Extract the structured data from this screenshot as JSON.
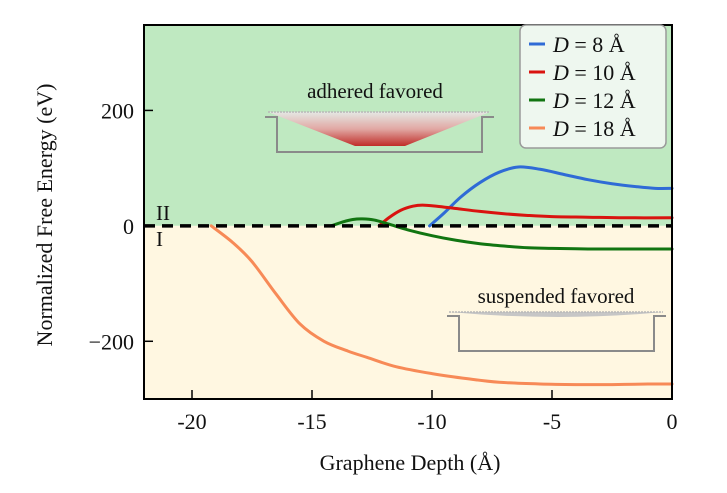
{
  "chart_data": {
    "type": "line",
    "title": "",
    "xlabel": "Graphene Depth (Å)",
    "ylabel": "Normalized Free Energy (eV)",
    "xlim": [
      -22,
      0
    ],
    "ylim": [
      -300,
      348
    ],
    "xticks": [
      -20,
      -15,
      -10,
      -5,
      0
    ],
    "xtick_labels": [
      "-20",
      "-15",
      "-10",
      "-5",
      "0"
    ],
    "yticks": [
      200,
      0,
      -200
    ],
    "ytick_labels": [
      "200",
      "0",
      "−200"
    ],
    "grid": false,
    "legend_position": "top-right",
    "regions": [
      {
        "name": "II",
        "label": "II",
        "range": [
          0,
          348
        ],
        "color": "#bfe9c1",
        "annotation": "adhered favored"
      },
      {
        "name": "I",
        "label": "I",
        "range": [
          -300,
          0
        ],
        "color": "#fff7e1",
        "annotation": "suspended favored"
      }
    ],
    "reference_line": {
      "y": 0,
      "style": "dashed",
      "color": "#000000"
    },
    "series": [
      {
        "name": "D = 8 Å",
        "var": "D",
        "value_label": "= 8 Å",
        "color": "#2f6bd6",
        "x": [
          -10.1,
          -9.5,
          -8.8,
          -8.0,
          -7.2,
          -6.4,
          -5.5,
          -4.5,
          -3.5,
          -2.5,
          -1.5,
          -0.7,
          0
        ],
        "y": [
          0,
          22,
          50,
          75,
          93,
          102,
          98,
          89,
          80,
          73,
          68,
          65,
          65
        ]
      },
      {
        "name": "D = 10 Å",
        "var": "D",
        "value_label": "= 10 Å",
        "color": "#d9130f",
        "x": [
          -12.2,
          -11.8,
          -11.3,
          -10.8,
          -10.4,
          -9.8,
          -9.0,
          -8.0,
          -7.0,
          -6.0,
          -5.0,
          -3.5,
          -2.0,
          0
        ],
        "y": [
          0,
          14,
          27,
          34,
          36,
          34,
          30,
          25,
          21,
          18,
          16,
          15,
          14,
          14
        ]
      },
      {
        "name": "D = 12 Å",
        "var": "D",
        "value_label": "= 12 Å",
        "color": "#117511",
        "x": [
          -14.2,
          -13.7,
          -13.3,
          -12.9,
          -12.4,
          -11.8,
          -11.0,
          -10.0,
          -9.0,
          -8.0,
          -7.0,
          -6.0,
          -5.0,
          -3.5,
          -2.0,
          0
        ],
        "y": [
          0,
          7,
          11,
          12,
          10,
          3,
          -7,
          -17,
          -25,
          -31,
          -35,
          -38,
          -39,
          -40,
          -40,
          -40
        ]
      },
      {
        "name": "D = 18 Å",
        "var": "D",
        "value_label": "= 18 Å",
        "color": "#f78a57",
        "x": [
          -19.2,
          -18.3,
          -17.5,
          -16.5,
          -15.5,
          -14.5,
          -13.5,
          -12.7,
          -11.5,
          -10.0,
          -8.5,
          -7.2,
          -5.5,
          -4.0,
          -2.5,
          -1.0,
          0
        ],
        "y": [
          0,
          -29,
          -62,
          -118,
          -170,
          -200,
          -217,
          -228,
          -244,
          -256,
          -265,
          -271,
          -274,
          -275,
          -275,
          -274,
          -274
        ]
      }
    ]
  }
}
